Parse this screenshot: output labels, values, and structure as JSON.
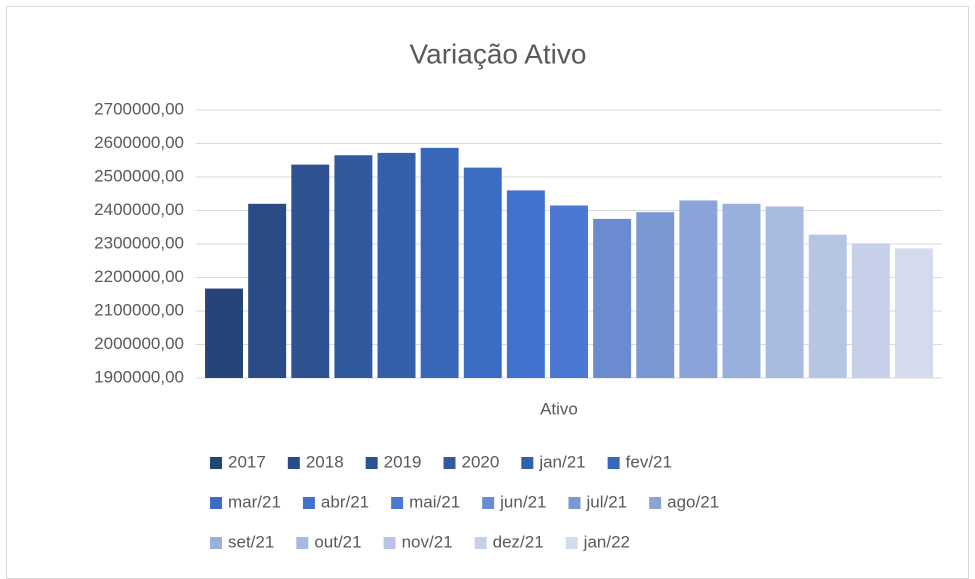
{
  "chart_data": {
    "type": "bar",
    "title": "Variação Ativo",
    "categories": [
      "Ativo"
    ],
    "series": [
      {
        "name": "2017",
        "color": "#264478",
        "values": [
          2167000
        ]
      },
      {
        "name": "2018",
        "color": "#2a4b85",
        "values": [
          2420000
        ]
      },
      {
        "name": "2019",
        "color": "#2e5291",
        "values": [
          2537000
        ]
      },
      {
        "name": "2020",
        "color": "#31599e",
        "values": [
          2565000
        ]
      },
      {
        "name": "jan/21",
        "color": "#345fab",
        "values": [
          2572000
        ]
      },
      {
        "name": "fev/21",
        "color": "#3866b8",
        "values": [
          2587000
        ]
      },
      {
        "name": "mar/21",
        "color": "#3b6dc4",
        "values": [
          2528000
        ]
      },
      {
        "name": "abr/21",
        "color": "#4172cf",
        "values": [
          2460000
        ]
      },
      {
        "name": "mai/21",
        "color": "#4a78d2",
        "values": [
          2415000
        ]
      },
      {
        "name": "jun/21",
        "color": "#6b8bd0",
        "values": [
          2375000
        ]
      },
      {
        "name": "jul/21",
        "color": "#7b97d4",
        "values": [
          2395000
        ]
      },
      {
        "name": "ago/21",
        "color": "#8aa3d8",
        "values": [
          2430000
        ]
      },
      {
        "name": "set/21",
        "color": "#99afdc",
        "values": [
          2420000
        ]
      },
      {
        "name": "out/21",
        "color": "#a8bae0",
        "values": [
          2412000
        ]
      },
      {
        "name": "nov/21",
        "color": "#b7c5e5",
        "values": [
          2328000
        ]
      },
      {
        "name": "dez/21",
        "color": "#c6d0e9",
        "values": [
          2302000
        ]
      },
      {
        "name": "jan/22",
        "color": "#d4dbee",
        "values": [
          2287000
        ]
      }
    ],
    "ylim": [
      1900000,
      2700000
    ],
    "yticks": [
      {
        "value": 1900000,
        "label": "1900000,00"
      },
      {
        "value": 2000000,
        "label": "2000000,00"
      },
      {
        "value": 2100000,
        "label": "2100000,00"
      },
      {
        "value": 2200000,
        "label": "2200000,00"
      },
      {
        "value": 2300000,
        "label": "2300000,00"
      },
      {
        "value": 2400000,
        "label": "2400000,00"
      },
      {
        "value": 2500000,
        "label": "2500000,00"
      },
      {
        "value": 2600000,
        "label": "2600000,00"
      },
      {
        "value": 2700000,
        "label": "2700000,00"
      }
    ],
    "grid": true,
    "legend": "bottom"
  }
}
